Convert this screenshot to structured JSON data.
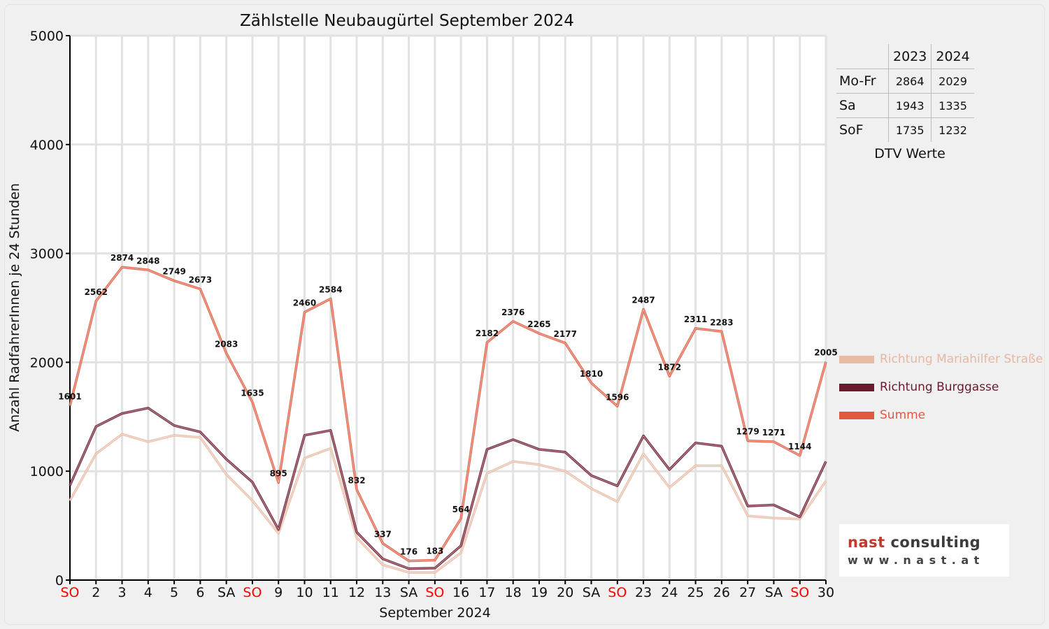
{
  "chart_data": {
    "type": "line",
    "title": "Zählstelle Neubaugürtel September 2024",
    "xlabel": "September 2024",
    "ylabel": "Anzahl RadfahrerInnen je 24 Stunden",
    "ylim": [
      0,
      5000
    ],
    "yticks": [
      "0",
      "1000",
      "2000",
      "3000",
      "4000",
      "5000"
    ],
    "grid": true,
    "legend_position": "right",
    "categories": [
      "SO",
      "2",
      "3",
      "4",
      "5",
      "6",
      "SA",
      "SO",
      "9",
      "10",
      "11",
      "12",
      "13",
      "SA",
      "SO",
      "16",
      "17",
      "18",
      "19",
      "20",
      "SA",
      "SO",
      "23",
      "24",
      "25",
      "26",
      "27",
      "SA",
      "SO",
      "30"
    ],
    "weekend_tick_color": "#ff0000",
    "weekend_ticks": [
      "SO"
    ],
    "series": [
      {
        "name": "Richtung Mariahilfer Straße",
        "color": "#e8bba5",
        "values": [
          730,
          1160,
          1340,
          1270,
          1330,
          1310,
          970,
          730,
          430,
          1120,
          1210,
          390,
          140,
          70,
          70,
          250,
          980,
          1090,
          1060,
          1000,
          840,
          720,
          1160,
          850,
          1050,
          1050,
          590,
          570,
          560,
          910
        ]
      },
      {
        "name": "Richtung Burggasse",
        "color": "#6b1a2e",
        "values": [
          870,
          1410,
          1530,
          1580,
          1420,
          1360,
          1110,
          900,
          465,
          1330,
          1375,
          440,
          195,
          105,
          110,
          315,
          1200,
          1290,
          1200,
          1175,
          960,
          865,
          1325,
          1015,
          1260,
          1230,
          680,
          690,
          580,
          1090
        ]
      },
      {
        "name": "Summe",
        "color": "#e05a40",
        "values": [
          1601,
          2562,
          2874,
          2848,
          2749,
          2673,
          2083,
          1635,
          895,
          2460,
          2584,
          832,
          337,
          176,
          183,
          564,
          2182,
          2376,
          2265,
          2177,
          1810,
          1596,
          2487,
          1872,
          2311,
          2283,
          1279,
          1271,
          1144,
          2005
        ]
      }
    ],
    "data_labels": [
      "1601",
      "2562",
      "2874",
      "2848",
      "2749",
      "2673",
      "2083",
      "1635",
      "895",
      "2460",
      "2584",
      "832",
      "337",
      "176",
      "183",
      "564",
      "2182",
      "2376",
      "2265",
      "2177",
      "1810",
      "1596",
      "2487",
      "1872",
      "2311",
      "2283",
      "1279",
      "1271",
      "1144",
      "2005"
    ]
  },
  "dtv": {
    "caption": "DTV Werte",
    "years": [
      "2023",
      "2024"
    ],
    "rows": [
      {
        "label": "Mo-Fr",
        "v2023": "2864",
        "v2024": "2029"
      },
      {
        "label": "Sa",
        "v2023": "1943",
        "v2024": "1335"
      },
      {
        "label": "SoF",
        "v2023": "1735",
        "v2024": "1232"
      }
    ]
  },
  "logo": {
    "name_a": "nast",
    "name_b": "consulting",
    "url": "www.nast.at"
  }
}
